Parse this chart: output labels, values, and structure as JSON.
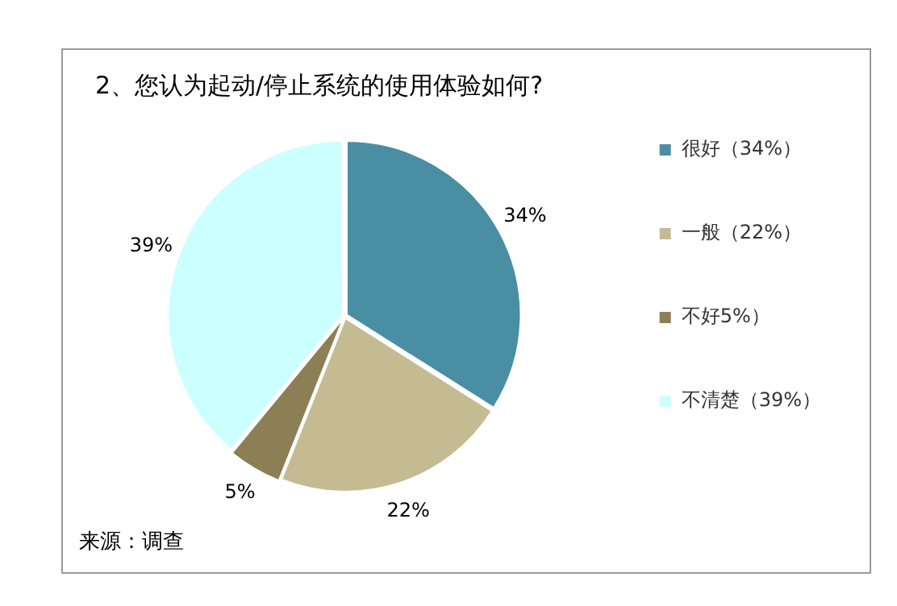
{
  "chart_data": {
    "type": "pie",
    "title": "2、您认为起动/停止系统的使用体验如何?",
    "categories": [
      "很好（34%）",
      "一般（22%）",
      "不好5%）",
      "不清楚（39%）"
    ],
    "values": [
      34,
      22,
      5,
      39
    ],
    "value_labels": [
      "34%",
      "22%",
      "5%",
      "39%"
    ],
    "colors": [
      "#4a8ea3",
      "#c4bb93",
      "#8c7f55",
      "#ccffff"
    ],
    "legend": "right",
    "annotations": [
      "来源：调查"
    ]
  }
}
